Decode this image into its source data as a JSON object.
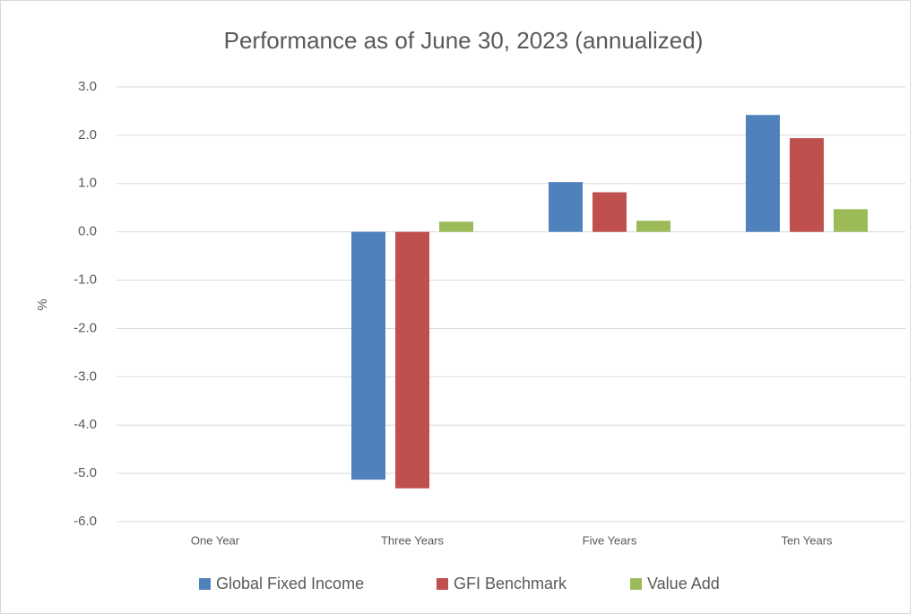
{
  "chart_data": {
    "type": "bar",
    "title": "Performance as of June 30, 2023 (annualized)",
    "y_label": "%",
    "categories": [
      "One Year",
      "Three Years",
      "Five Years",
      "Ten Years"
    ],
    "series": [
      {
        "name": "Global Fixed Income",
        "color": "#4f81bd",
        "values": [
          null,
          -5.13,
          1.03,
          2.42
        ]
      },
      {
        "name": "GFI Benchmark",
        "color": "#c0504d",
        "values": [
          null,
          -5.31,
          0.82,
          1.94
        ]
      },
      {
        "name": "Value Add",
        "color": "#9bbb59",
        "values": [
          null,
          0.21,
          0.23,
          0.47
        ]
      }
    ],
    "ylim": [
      -6,
      3
    ],
    "yticks": [
      {
        "value": 3,
        "label": "3.0"
      },
      {
        "value": 2,
        "label": "2.0"
      },
      {
        "value": 1,
        "label": "1.0"
      },
      {
        "value": 0,
        "label": "0.0"
      },
      {
        "value": -1,
        "label": "-1.0"
      },
      {
        "value": -2,
        "label": "-2.0"
      },
      {
        "value": -3,
        "label": "-3.0"
      },
      {
        "value": -4,
        "label": "-4.0"
      },
      {
        "value": -5,
        "label": "-5.0"
      },
      {
        "value": -6,
        "label": "-6.0"
      }
    ],
    "grid": true,
    "legend": "bottom"
  }
}
